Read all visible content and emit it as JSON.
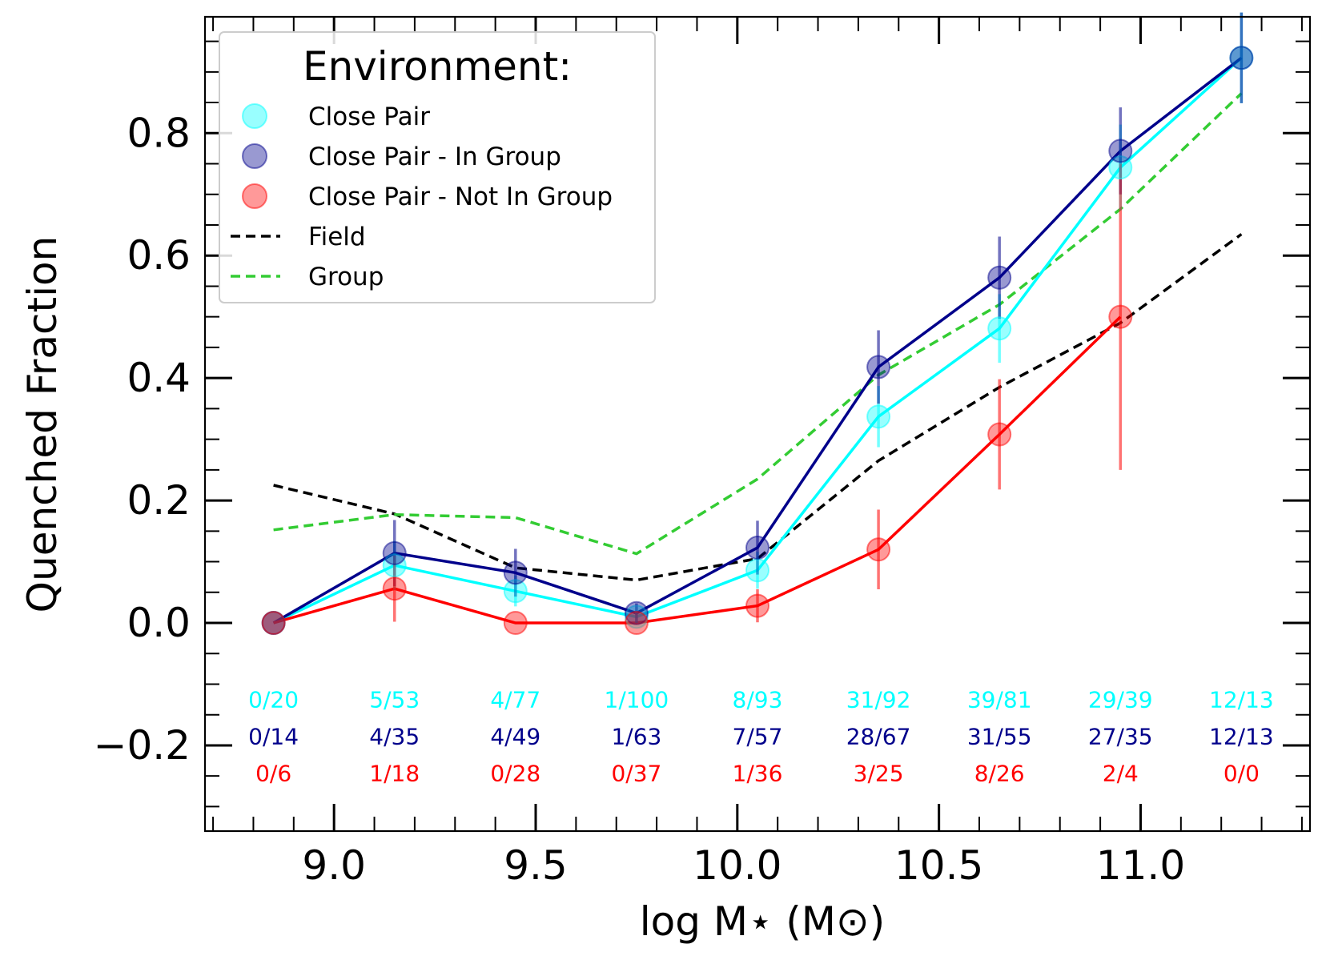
{
  "chart_data": {
    "type": "line",
    "title": "",
    "xlabel": "log M⋆ (M⊙)",
    "ylabel": "Quenched Fraction",
    "xlim": [
      8.68,
      11.42
    ],
    "ylim": [
      -0.34,
      0.99
    ],
    "x_ticks": [
      "9.0",
      "9.5",
      "10.0",
      "10.5",
      "11.0"
    ],
    "y_ticks": [
      "−0.2",
      "0.0",
      "0.2",
      "0.4",
      "0.6",
      "0.8"
    ],
    "x_tick_values": [
      9.0,
      9.5,
      10.0,
      10.5,
      11.0
    ],
    "y_tick_values": [
      -0.2,
      0.0,
      0.2,
      0.4,
      0.6,
      0.8
    ],
    "x": [
      8.85,
      9.15,
      9.45,
      9.75,
      10.05,
      10.35,
      10.65,
      10.95,
      11.25
    ],
    "legend": {
      "title": "Environment:",
      "position": "top-left",
      "entries": [
        "Close Pair",
        "Close Pair - In Group",
        "Close Pair - Not In Group",
        "Field",
        "Group"
      ]
    },
    "series": [
      {
        "name": "Close Pair",
        "color": "#00ffff",
        "marker": "circle",
        "values": [
          0.0,
          0.094,
          0.052,
          0.01,
          0.086,
          0.337,
          0.481,
          0.744,
          0.923
        ],
        "err": [
          0.0,
          0.04,
          0.025,
          0.01,
          0.03,
          0.05,
          0.056,
          0.07,
          0.074
        ],
        "counts": [
          "0/20",
          "5/53",
          "4/77",
          "1/100",
          "8/93",
          "31/92",
          "39/81",
          "29/39",
          "12/13"
        ]
      },
      {
        "name": "Close Pair - In Group",
        "color": "#00008b",
        "marker": "circle",
        "values": [
          0.0,
          0.114,
          0.082,
          0.016,
          0.123,
          0.418,
          0.564,
          0.771,
          0.923
        ],
        "err": [
          0.0,
          0.054,
          0.039,
          0.016,
          0.044,
          0.06,
          0.067,
          0.071,
          0.074
        ],
        "counts": [
          "0/14",
          "4/35",
          "4/49",
          "1/63",
          "7/57",
          "28/67",
          "31/55",
          "27/35",
          "12/13"
        ]
      },
      {
        "name": "Close Pair - Not In Group",
        "color": "#ff0000",
        "marker": "circle",
        "values": [
          0.0,
          0.056,
          0.0,
          0.0,
          0.028,
          0.12,
          0.308,
          0.5,
          null
        ],
        "err": [
          0.0,
          0.054,
          0.0,
          0.0,
          0.027,
          0.065,
          0.09,
          0.25,
          null
        ],
        "counts": [
          "0/6",
          "1/18",
          "0/28",
          "0/37",
          "1/36",
          "3/25",
          "8/26",
          "2/4",
          "0/0"
        ]
      },
      {
        "name": "Field",
        "color": "#000000",
        "style": "dashed",
        "values": [
          0.225,
          0.178,
          0.09,
          0.07,
          0.105,
          0.265,
          0.385,
          0.49,
          0.635
        ]
      },
      {
        "name": "Group",
        "color": "#33cc33",
        "style": "dashed",
        "values": [
          0.152,
          0.177,
          0.172,
          0.113,
          0.235,
          0.405,
          0.52,
          0.676,
          0.865
        ]
      }
    ],
    "count_rows": [
      {
        "series": "Close Pair",
        "y": -0.125
      },
      {
        "series": "Close Pair - In Group",
        "y": -0.185
      },
      {
        "series": "Close Pair - Not In Group",
        "y": -0.245
      }
    ]
  }
}
